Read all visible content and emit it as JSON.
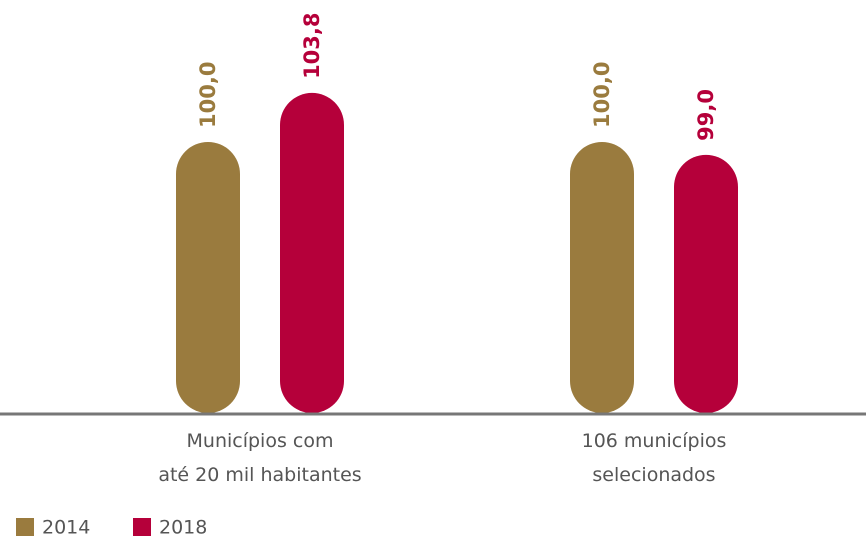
{
  "chart_data": {
    "type": "bar",
    "categories": [
      [
        "Municípios com",
        "até 20 mil habitantes"
      ],
      [
        "106 municípios",
        "selecionados"
      ]
    ],
    "series": [
      {
        "name": "2014",
        "color": "#9a7b3e",
        "values": [
          100.0,
          100.0
        ],
        "value_labels": [
          "100,0",
          "100,0"
        ]
      },
      {
        "name": "2018",
        "color": "#b5003a",
        "values": [
          103.8,
          99.0
        ],
        "value_labels": [
          "103,8",
          "99,0"
        ]
      }
    ],
    "ylim": [
      79,
      111
    ]
  }
}
